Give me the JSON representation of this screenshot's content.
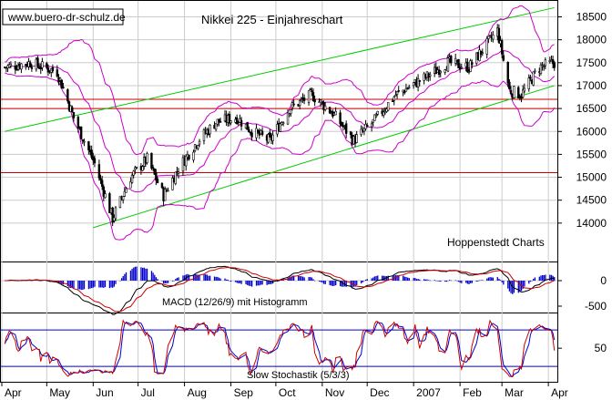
{
  "header": {
    "source_url": "www.buero-dr-schulz.de",
    "title": "Nikkei 225 - Einjahreschart"
  },
  "annotations": {
    "watermark": "Hoppenstedt Charts",
    "macd_label": "MACD (12/26/9) mit Histogramm",
    "stoch_label": "Slow Stochastik (5/3/3)"
  },
  "colors": {
    "candles": "#000000",
    "bollinger": "#cc00cc",
    "trend_channel": "#00cc00",
    "support_lines": "#cc0000",
    "macd_histogram": "#0000cc",
    "macd_line": "#000000",
    "macd_signal": "#cc0000",
    "stoch_k": "#cc0000",
    "stoch_d": "#0000cc",
    "stoch_bands": "#0000cc",
    "grid": "#cccccc"
  },
  "chart_data": [
    {
      "type": "candlestick",
      "panel": "price",
      "title": "Nikkei 225 - Einjahreschart",
      "x_tick_labels": [
        "Apr",
        "May",
        "Jun",
        "Jul",
        "Aug",
        "Sep",
        "Oct",
        "Nov",
        "Dec",
        "2007",
        "Feb",
        "Mar",
        "Apr"
      ],
      "y_tick_labels": [
        14000,
        14500,
        15000,
        15500,
        16000,
        16500,
        17000,
        17500,
        18000,
        18500
      ],
      "ylim": [
        13600,
        18750
      ],
      "grid": true,
      "approx_close_path": [
        {
          "date": "2006-04-03",
          "close": 17400
        },
        {
          "date": "2006-04-20",
          "close": 17500
        },
        {
          "date": "2006-05-08",
          "close": 17300
        },
        {
          "date": "2006-05-19",
          "close": 16300
        },
        {
          "date": "2006-06-02",
          "close": 15300
        },
        {
          "date": "2006-06-14",
          "close": 14100
        },
        {
          "date": "2006-06-26",
          "close": 15000
        },
        {
          "date": "2006-07-07",
          "close": 15400
        },
        {
          "date": "2006-07-18",
          "close": 14600
        },
        {
          "date": "2006-07-28",
          "close": 15200
        },
        {
          "date": "2006-08-10",
          "close": 15800
        },
        {
          "date": "2006-08-22",
          "close": 16200
        },
        {
          "date": "2006-09-05",
          "close": 16300
        },
        {
          "date": "2006-09-15",
          "close": 16000
        },
        {
          "date": "2006-09-27",
          "close": 15800
        },
        {
          "date": "2006-10-10",
          "close": 16500
        },
        {
          "date": "2006-10-25",
          "close": 16800
        },
        {
          "date": "2006-11-08",
          "close": 16400
        },
        {
          "date": "2006-11-22",
          "close": 15800
        },
        {
          "date": "2006-12-05",
          "close": 16200
        },
        {
          "date": "2006-12-20",
          "close": 16800
        },
        {
          "date": "2007-01-10",
          "close": 17200
        },
        {
          "date": "2007-01-24",
          "close": 17500
        },
        {
          "date": "2007-02-07",
          "close": 17400
        },
        {
          "date": "2007-02-26",
          "close": 18200
        },
        {
          "date": "2007-03-06",
          "close": 16900
        },
        {
          "date": "2007-03-14",
          "close": 16800
        },
        {
          "date": "2007-03-26",
          "close": 17400
        },
        {
          "date": "2007-04-05",
          "close": 17500
        }
      ],
      "horizontal_lines": [
        16700,
        16500,
        15100
      ],
      "trend_channel": {
        "upper": [
          {
            "date": "2006-04-03",
            "price": 16000
          },
          {
            "date": "2007-04-05",
            "price": 18700
          }
        ],
        "lower": [
          {
            "date": "2006-06-01",
            "price": 13900
          },
          {
            "date": "2007-04-05",
            "price": 17000
          }
        ]
      }
    },
    {
      "type": "bar",
      "panel": "macd",
      "title": "MACD (12/26/9) mit Histogramm",
      "y_tick_labels": [
        0,
        -500
      ]
    },
    {
      "type": "line",
      "panel": "stochastic",
      "title": "Slow Stochastik (5/3/3)",
      "y_tick_labels": [
        50
      ],
      "bands": [
        80,
        20
      ]
    }
  ]
}
